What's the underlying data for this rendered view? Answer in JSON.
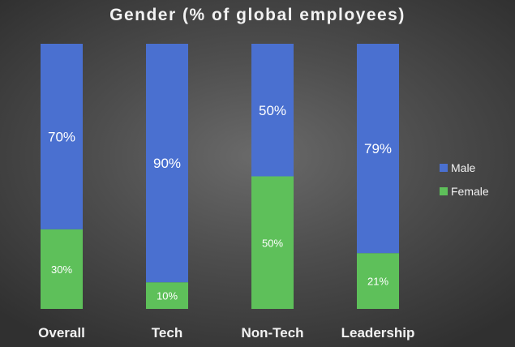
{
  "chart_data": {
    "type": "bar",
    "stacked": true,
    "percent_stacked": true,
    "title": "Gender (% of global employees)",
    "categories": [
      "Overall",
      "Tech",
      "Non-Tech",
      "Leadership"
    ],
    "series": [
      {
        "name": "Female",
        "values": [
          30,
          10,
          50,
          21
        ],
        "color": "#5ec05a"
      },
      {
        "name": "Male",
        "values": [
          70,
          90,
          50,
          79
        ],
        "color": "#4a70d0"
      }
    ],
    "data_labels": [
      {
        "Female": "30%",
        "Male": "70%"
      },
      {
        "Female": "10%",
        "Male": "90%"
      },
      {
        "Female": "50%",
        "Male": "50%"
      },
      {
        "Female": "21%",
        "Male": "79%"
      }
    ],
    "ylim": [
      0,
      100
    ],
    "grid": false,
    "legend_position": "right",
    "legend": [
      "Male",
      "Female"
    ]
  }
}
